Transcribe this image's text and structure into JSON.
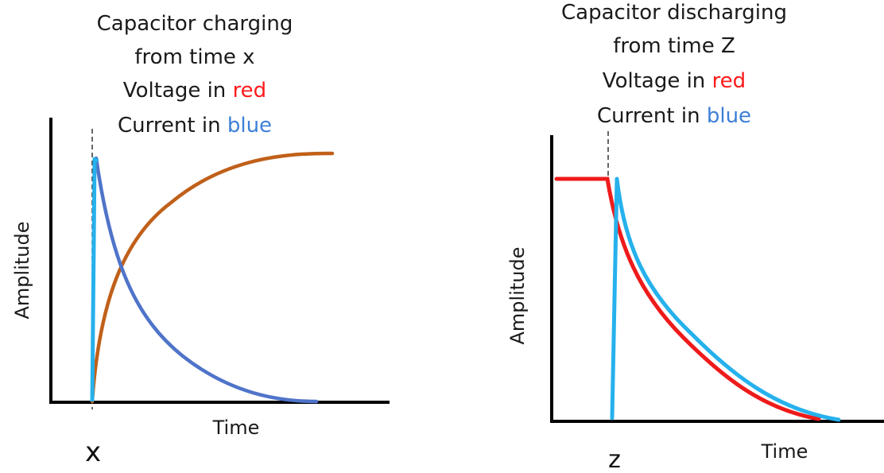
{
  "colors": {
    "axis": "#000000",
    "marker_line": "#333333",
    "red_word": "#ff1a1a",
    "blue_word": "#3d7fd6",
    "left_voltage_curve": "#c0601a",
    "left_current_curve": "#4f74c9",
    "left_current_spike": "#26b1ec",
    "right_voltage_curve": "#ee1b1b",
    "right_current_curve": "#26b1ec"
  },
  "charging": {
    "title_lines": [
      "Capacitor charging",
      "from time x"
    ],
    "voltage_prefix": "Voltage in ",
    "voltage_color_word": "red",
    "current_prefix": "Current in ",
    "current_color_word": "blue",
    "y_axis_label": "Amplitude",
    "x_axis_label": "Time",
    "marker_label": "x"
  },
  "discharging": {
    "title_lines": [
      "Capacitor discharging",
      "from time Z"
    ],
    "voltage_prefix": "Voltage in ",
    "voltage_color_word": "red",
    "current_prefix": "Current in ",
    "current_color_word": "blue",
    "y_axis_label": "Amplitude",
    "x_axis_label": "Time",
    "marker_label": "z"
  }
}
